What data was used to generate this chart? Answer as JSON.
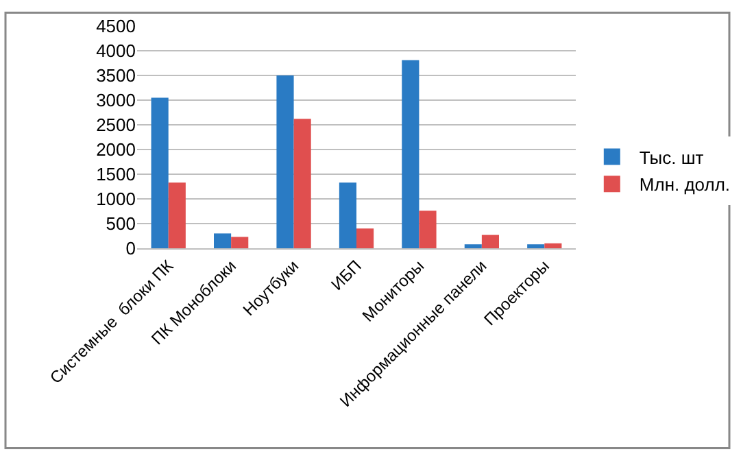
{
  "chart_data": {
    "type": "bar",
    "categories": [
      "Системные  блоки ПК",
      "ПК Моноблоки",
      "Ноутбуки",
      "ИБП",
      "Мониторы",
      "Информационные панели",
      "Проекторы"
    ],
    "series": [
      {
        "name": "Тыс. шт",
        "color": "#2a7bc4",
        "values": [
          3050,
          300,
          3500,
          1330,
          3810,
          80,
          80
        ]
      },
      {
        "name": "Млн. долл.",
        "color": "#e04f4f",
        "values": [
          1330,
          230,
          2620,
          400,
          760,
          270,
          100
        ]
      }
    ],
    "ylim": [
      0,
      4500
    ],
    "yticks": [
      0,
      500,
      1000,
      1500,
      2000,
      2500,
      3000,
      3500,
      4000,
      4500
    ],
    "grid": "y",
    "legend": "right"
  }
}
